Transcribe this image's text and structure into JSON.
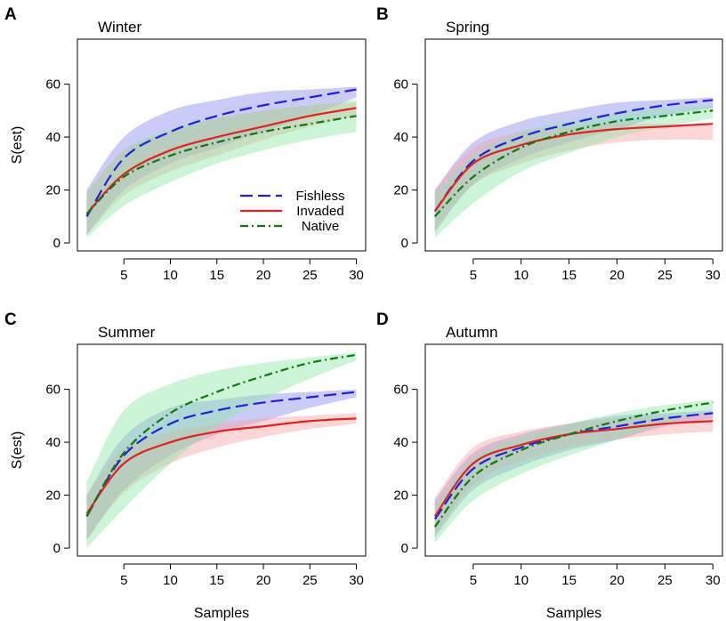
{
  "figure": {
    "shared_ylabel": "S(est)",
    "shared_xlabel": "Samples"
  },
  "legend": {
    "entries": [
      {
        "name": "Fishless",
        "color": "#1f1fe6",
        "style": "dashed"
      },
      {
        "name": "Invaded",
        "color": "#e61f1f",
        "style": "solid"
      },
      {
        "name": "Native",
        "color": "#0a7a0a",
        "style": "dashdot"
      }
    ],
    "band_colors": {
      "Fishless": "#8c8cf0",
      "Invaded": "#f5a3a3",
      "Native": "#8fe6a6"
    }
  },
  "panels": [
    {
      "letter": "A",
      "title": "Winter",
      "xlabel": "",
      "ylabel": "S(est)"
    },
    {
      "letter": "B",
      "title": "Spring",
      "xlabel": "",
      "ylabel": ""
    },
    {
      "letter": "C",
      "title": "Summer",
      "xlabel": "Samples",
      "ylabel": "S(est)"
    },
    {
      "letter": "D",
      "title": "Autumn",
      "xlabel": "Samples",
      "ylabel": ""
    }
  ],
  "chart_data": [
    {
      "type": "line",
      "title": "Winter",
      "panel": "A",
      "xlabel": "",
      "ylabel": "S(est)",
      "xlim": [
        0,
        31
      ],
      "ylim": [
        -3,
        77
      ],
      "xticks": [
        5,
        10,
        15,
        20,
        25,
        30
      ],
      "xtick_labels": [
        "5",
        "10",
        "15",
        "20",
        "25",
        "30"
      ],
      "yticks": [
        0,
        20,
        40,
        60
      ],
      "ytick_labels": [
        "0",
        "20",
        "40",
        "60"
      ],
      "legend": "inside-bottom-right",
      "series": [
        {
          "name": "Fishless",
          "x": [
            1,
            5,
            10,
            15,
            20,
            25,
            30
          ],
          "y": [
            10,
            32,
            42,
            48,
            52,
            55,
            58
          ],
          "lower": [
            3,
            20,
            30,
            36,
            42,
            48,
            55
          ],
          "upper": [
            20,
            40,
            50,
            54,
            57,
            58,
            59
          ]
        },
        {
          "name": "Invaded",
          "x": [
            1,
            5,
            10,
            15,
            20,
            25,
            30
          ],
          "y": [
            11,
            26,
            35,
            40,
            44,
            48,
            51
          ],
          "lower": [
            3,
            18,
            27,
            33,
            39,
            44,
            48
          ],
          "upper": [
            19,
            35,
            42,
            47,
            50,
            52,
            53
          ]
        },
        {
          "name": "Native",
          "x": [
            1,
            5,
            10,
            15,
            20,
            25,
            30
          ],
          "y": [
            11,
            25,
            33,
            38,
            42,
            45,
            48
          ],
          "lower": [
            2,
            14,
            23,
            30,
            35,
            39,
            42
          ],
          "upper": [
            19,
            35,
            43,
            47,
            50,
            52,
            54
          ]
        }
      ]
    },
    {
      "type": "line",
      "title": "Spring",
      "panel": "B",
      "xlabel": "",
      "ylabel": "",
      "xlim": [
        0,
        31
      ],
      "ylim": [
        -3,
        77
      ],
      "xticks": [
        5,
        10,
        15,
        20,
        25,
        30
      ],
      "xtick_labels": [
        "5",
        "10",
        "15",
        "20",
        "25",
        "30"
      ],
      "yticks": [
        0,
        20,
        40,
        60
      ],
      "ytick_labels": [
        "0",
        "20",
        "40",
        "60"
      ],
      "series": [
        {
          "name": "Fishless",
          "x": [
            1,
            5,
            10,
            15,
            20,
            25,
            30
          ],
          "y": [
            12,
            31,
            40,
            45,
            49,
            52,
            54
          ],
          "lower": [
            4,
            22,
            32,
            38,
            43,
            48,
            51
          ],
          "upper": [
            20,
            38,
            46,
            50,
            53,
            54,
            55
          ]
        },
        {
          "name": "Invaded",
          "x": [
            1,
            5,
            10,
            15,
            20,
            25,
            30
          ],
          "y": [
            12,
            30,
            37,
            41,
            43,
            44,
            45
          ],
          "lower": [
            5,
            22,
            30,
            35,
            38,
            39,
            39
          ],
          "upper": [
            20,
            36,
            42,
            44,
            45,
            45,
            45
          ]
        },
        {
          "name": "Native",
          "x": [
            1,
            5,
            10,
            15,
            20,
            25,
            30
          ],
          "y": [
            10,
            25,
            36,
            42,
            46,
            48,
            50
          ],
          "lower": [
            2,
            15,
            27,
            34,
            40,
            44,
            47
          ],
          "upper": [
            18,
            33,
            42,
            46,
            49,
            51,
            52
          ]
        }
      ]
    },
    {
      "type": "line",
      "title": "Summer",
      "panel": "C",
      "xlabel": "Samples",
      "ylabel": "S(est)",
      "xlim": [
        0,
        31
      ],
      "ylim": [
        -3,
        77
      ],
      "xticks": [
        5,
        10,
        15,
        20,
        25,
        30
      ],
      "xtick_labels": [
        "5",
        "10",
        "15",
        "20",
        "25",
        "30"
      ],
      "yticks": [
        0,
        20,
        40,
        60
      ],
      "ytick_labels": [
        "0",
        "20",
        "40",
        "60"
      ],
      "series": [
        {
          "name": "Fishless",
          "x": [
            1,
            5,
            10,
            15,
            20,
            25,
            30
          ],
          "y": [
            12,
            35,
            47,
            52,
            55,
            57,
            59
          ],
          "lower": [
            3,
            22,
            35,
            43,
            48,
            53,
            57
          ],
          "upper": [
            20,
            42,
            53,
            56,
            58,
            59,
            60
          ]
        },
        {
          "name": "Invaded",
          "x": [
            1,
            5,
            10,
            15,
            20,
            25,
            30
          ],
          "y": [
            13,
            32,
            40,
            44,
            46,
            48,
            49
          ],
          "lower": [
            3,
            21,
            32,
            38,
            42,
            45,
            47
          ],
          "upper": [
            20,
            38,
            44,
            47,
            49,
            50,
            51
          ]
        },
        {
          "name": "Native",
          "x": [
            1,
            5,
            10,
            15,
            20,
            25,
            30
          ],
          "y": [
            12,
            36,
            51,
            59,
            65,
            70,
            73
          ],
          "lower": [
            0,
            15,
            32,
            46,
            56,
            64,
            71
          ],
          "upper": [
            25,
            52,
            62,
            67,
            70,
            72,
            74
          ]
        }
      ]
    },
    {
      "type": "line",
      "title": "Autumn",
      "panel": "D",
      "xlabel": "Samples",
      "ylabel": "",
      "xlim": [
        0,
        31
      ],
      "ylim": [
        -3,
        77
      ],
      "xticks": [
        5,
        10,
        15,
        20,
        25,
        30
      ],
      "xtick_labels": [
        "5",
        "10",
        "15",
        "20",
        "25",
        "30"
      ],
      "yticks": [
        0,
        20,
        40,
        60
      ],
      "ytick_labels": [
        "0",
        "20",
        "40",
        "60"
      ],
      "series": [
        {
          "name": "Fishless",
          "x": [
            1,
            5,
            10,
            15,
            20,
            25,
            30
          ],
          "y": [
            11,
            30,
            38,
            43,
            46,
            49,
            51
          ],
          "lower": [
            4,
            22,
            31,
            37,
            41,
            46,
            49
          ],
          "upper": [
            18,
            36,
            43,
            47,
            50,
            51,
            52
          ]
        },
        {
          "name": "Invaded",
          "x": [
            1,
            5,
            10,
            15,
            20,
            25,
            30
          ],
          "y": [
            12,
            32,
            39,
            43,
            45,
            47,
            48
          ],
          "lower": [
            5,
            24,
            33,
            38,
            41,
            43,
            44
          ],
          "upper": [
            19,
            38,
            44,
            47,
            49,
            50,
            51
          ]
        },
        {
          "name": "Native",
          "x": [
            1,
            5,
            10,
            15,
            20,
            25,
            30
          ],
          "y": [
            8,
            27,
            37,
            43,
            48,
            52,
            55
          ],
          "lower": [
            2,
            18,
            28,
            35,
            41,
            47,
            52
          ],
          "upper": [
            16,
            34,
            42,
            47,
            51,
            54,
            56
          ]
        }
      ]
    }
  ]
}
